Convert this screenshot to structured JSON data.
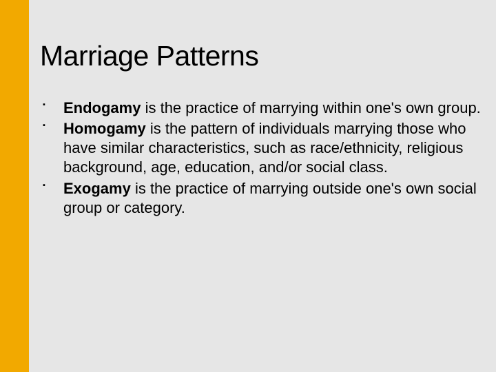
{
  "accent_color": "#f2a900",
  "background_color": "#e6e6e6",
  "title": "Marriage Patterns",
  "bullets": [
    {
      "term": "Endogamy",
      "definition": " is the practice of marrying within one's own group."
    },
    {
      "term": "Homogamy",
      "definition": " is the pattern of individuals marrying those who have similar characteristics, such as race/ethnicity, religious background, age, education, and/or social class."
    },
    {
      "term": "Exogamy",
      "definition": " is the practice of marrying outside one's own social group or category."
    }
  ]
}
